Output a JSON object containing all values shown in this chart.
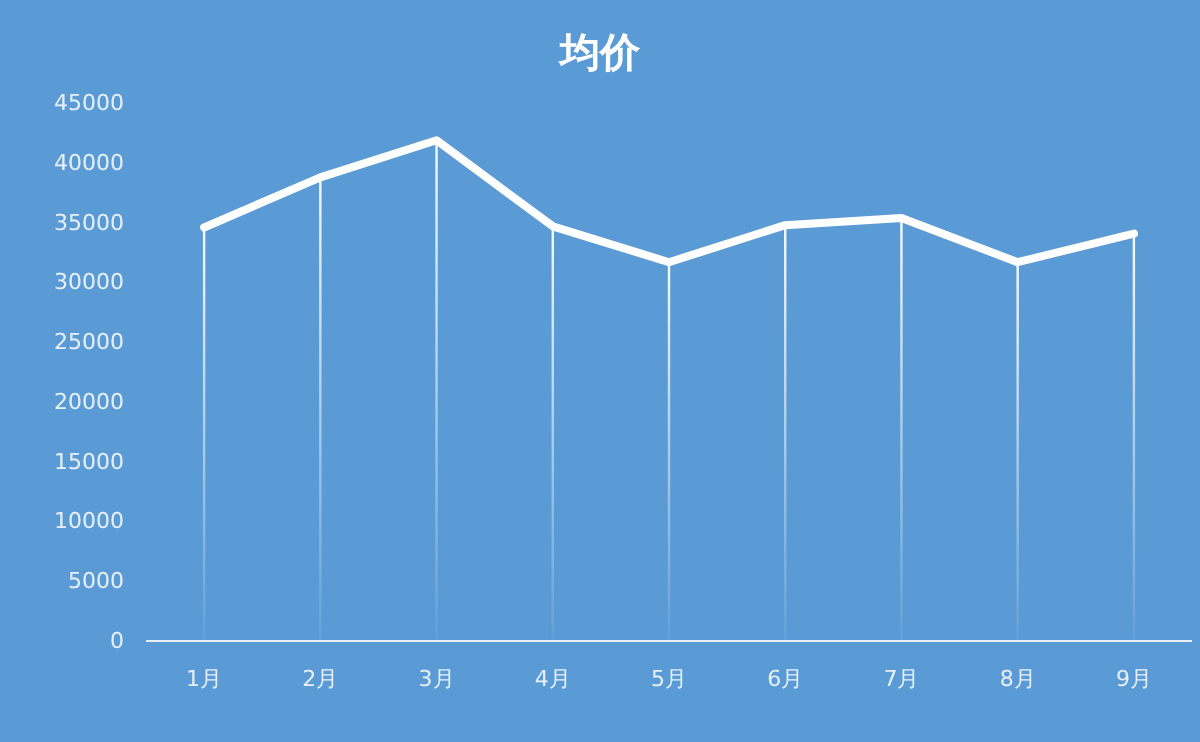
{
  "chart_data": {
    "type": "line",
    "title": "均价",
    "categories": [
      "1月",
      "2月",
      "3月",
      "4月",
      "5月",
      "6月",
      "7月",
      "8月",
      "9月"
    ],
    "series": [
      {
        "color": "#ffffff",
        "values": [
          34500,
          38700,
          41800,
          34600,
          31600,
          34700,
          35300,
          31600,
          34000
        ],
        "errors": [
          [
            0,
            34500
          ],
          [
            0,
            38700
          ],
          [
            0,
            41800
          ],
          [
            0,
            34600
          ],
          [
            0,
            31600
          ],
          [
            0,
            34700
          ],
          [
            0,
            35300
          ],
          [
            0,
            31600
          ],
          [
            0,
            34000
          ]
        ]
      }
    ],
    "ylim": [
      0,
      45000
    ],
    "yticks": [
      0,
      5000,
      10000,
      15000,
      20000,
      25000,
      30000,
      35000,
      40000,
      45000
    ],
    "grid": false,
    "marker": "none",
    "line_style": "solid"
  }
}
